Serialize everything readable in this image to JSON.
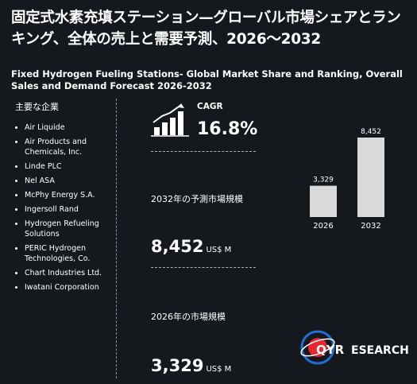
{
  "title_jp": "固定式水素充填ステーション—グローバル市場シェアとランキング、全体の売上と需要予測、2026～2032",
  "title_en": "Fixed Hydrogen Fueling Stations- Global Market Share and Ranking, Overall Sales and Demand Forecast 2026-2032",
  "companies_heading": "主要な企業",
  "companies": [
    "Air Liquide",
    "Air Products and Chemicals, Inc.",
    "Linde PLC",
    "Nel ASA",
    "McPhy Energy S.A.",
    "Ingersoll Rand",
    "Hydrogen Refueling Solutions",
    "PERIC Hydrogen Technologies, Co.",
    "Chart Industries Ltd.",
    "Iwatani Corporation"
  ],
  "cagr": {
    "label": "CAGR",
    "value": "16.8%"
  },
  "forecast_2032": {
    "label": "2032年の予測市場規模",
    "value": "8,452",
    "unit": "US$ M"
  },
  "size_2026": {
    "label": "2026年の市場規模",
    "value": "3,329",
    "unit": "US$ M"
  },
  "chart_data": {
    "type": "bar",
    "categories": [
      "2026",
      "2032"
    ],
    "values": [
      3329,
      8452
    ],
    "data_labels": [
      "3,329",
      "8,452"
    ],
    "bar_color": "#d9d9d9",
    "grid": false
  },
  "logo": {
    "brand_a": "QYR",
    "brand_b": "ESEARCH",
    "colors": {
      "accent": "#e8262d",
      "primary": "#1f6fd6"
    }
  }
}
